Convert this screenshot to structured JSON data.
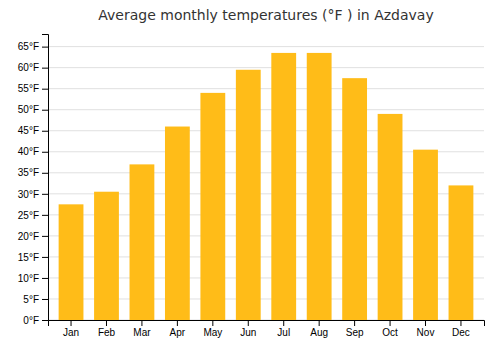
{
  "chart_data": {
    "type": "bar",
    "title": "Average monthly temperatures (°F ) in Azdavay",
    "categories": [
      "Jan",
      "Feb",
      "Mar",
      "Apr",
      "May",
      "Jun",
      "Jul",
      "Aug",
      "Sep",
      "Oct",
      "Nov",
      "Dec"
    ],
    "values": [
      27.5,
      30.5,
      37,
      46,
      54,
      59.5,
      63.5,
      63.5,
      57.5,
      49,
      40.5,
      32
    ],
    "color": "#FFBC18",
    "ylim": [
      0,
      68
    ],
    "yticks": [
      {
        "value": 0,
        "label": "0°F"
      },
      {
        "value": 5,
        "label": "5°F"
      },
      {
        "value": 10,
        "label": "10°F"
      },
      {
        "value": 15,
        "label": "15°F"
      },
      {
        "value": 20,
        "label": "20°F"
      },
      {
        "value": 25,
        "label": "25°F"
      },
      {
        "value": 30,
        "label": "30°F"
      },
      {
        "value": 35,
        "label": "35°F"
      },
      {
        "value": 40,
        "label": "40°F"
      },
      {
        "value": 45,
        "label": "45°F"
      },
      {
        "value": 50,
        "label": "50°F"
      },
      {
        "value": 55,
        "label": "55°F"
      },
      {
        "value": 60,
        "label": "60°F"
      },
      {
        "value": 65,
        "label": "65°F"
      }
    ],
    "grid": true
  }
}
